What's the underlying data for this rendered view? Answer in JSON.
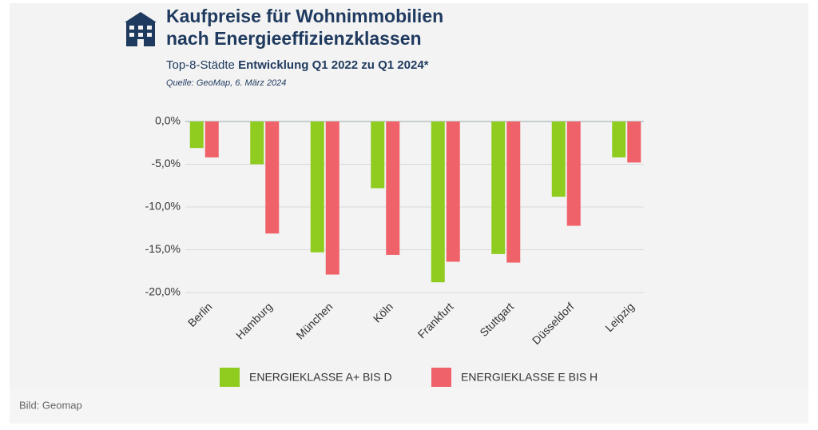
{
  "chart_data": {
    "type": "bar",
    "title": [
      "Kaufpreise für Wohnimmobilien",
      "nach Energieeffizienzklassen"
    ],
    "subtitle": [
      "Top-8-Städte",
      "Entwicklung Q1 2022 zu Q1 2024*"
    ],
    "source": "Quelle: GeoMap, 6. März 2024",
    "categories": [
      "Berlin",
      "Hamburg",
      "München",
      "Köln",
      "Frankfurt",
      "Stuttgart",
      "Düsseldorf",
      "Leipzig"
    ],
    "series": [
      {
        "name": "ENERGIEKLASSE A+ BIS D",
        "color": "#8fcc1f",
        "values": [
          -3.1,
          -5.0,
          -15.3,
          -7.8,
          -18.8,
          -15.5,
          -8.8,
          -4.2
        ]
      },
      {
        "name": "ENERGIEKLASSE E BIS H",
        "color": "#f0626a",
        "values": [
          -4.2,
          -13.1,
          -17.9,
          -15.6,
          -16.4,
          -16.5,
          -12.2,
          -4.8
        ]
      }
    ],
    "ylim": [
      -20,
      0
    ],
    "yticks": [
      {
        "value": 0,
        "label": "0,0%"
      },
      {
        "value": -5,
        "label": "-5,0%"
      },
      {
        "value": -10,
        "label": "-10,0%"
      },
      {
        "value": -15,
        "label": "-15,0%"
      },
      {
        "value": -20,
        "label": "-20,0%"
      }
    ],
    "grid": true
  },
  "caption": "Bild: Geomap"
}
